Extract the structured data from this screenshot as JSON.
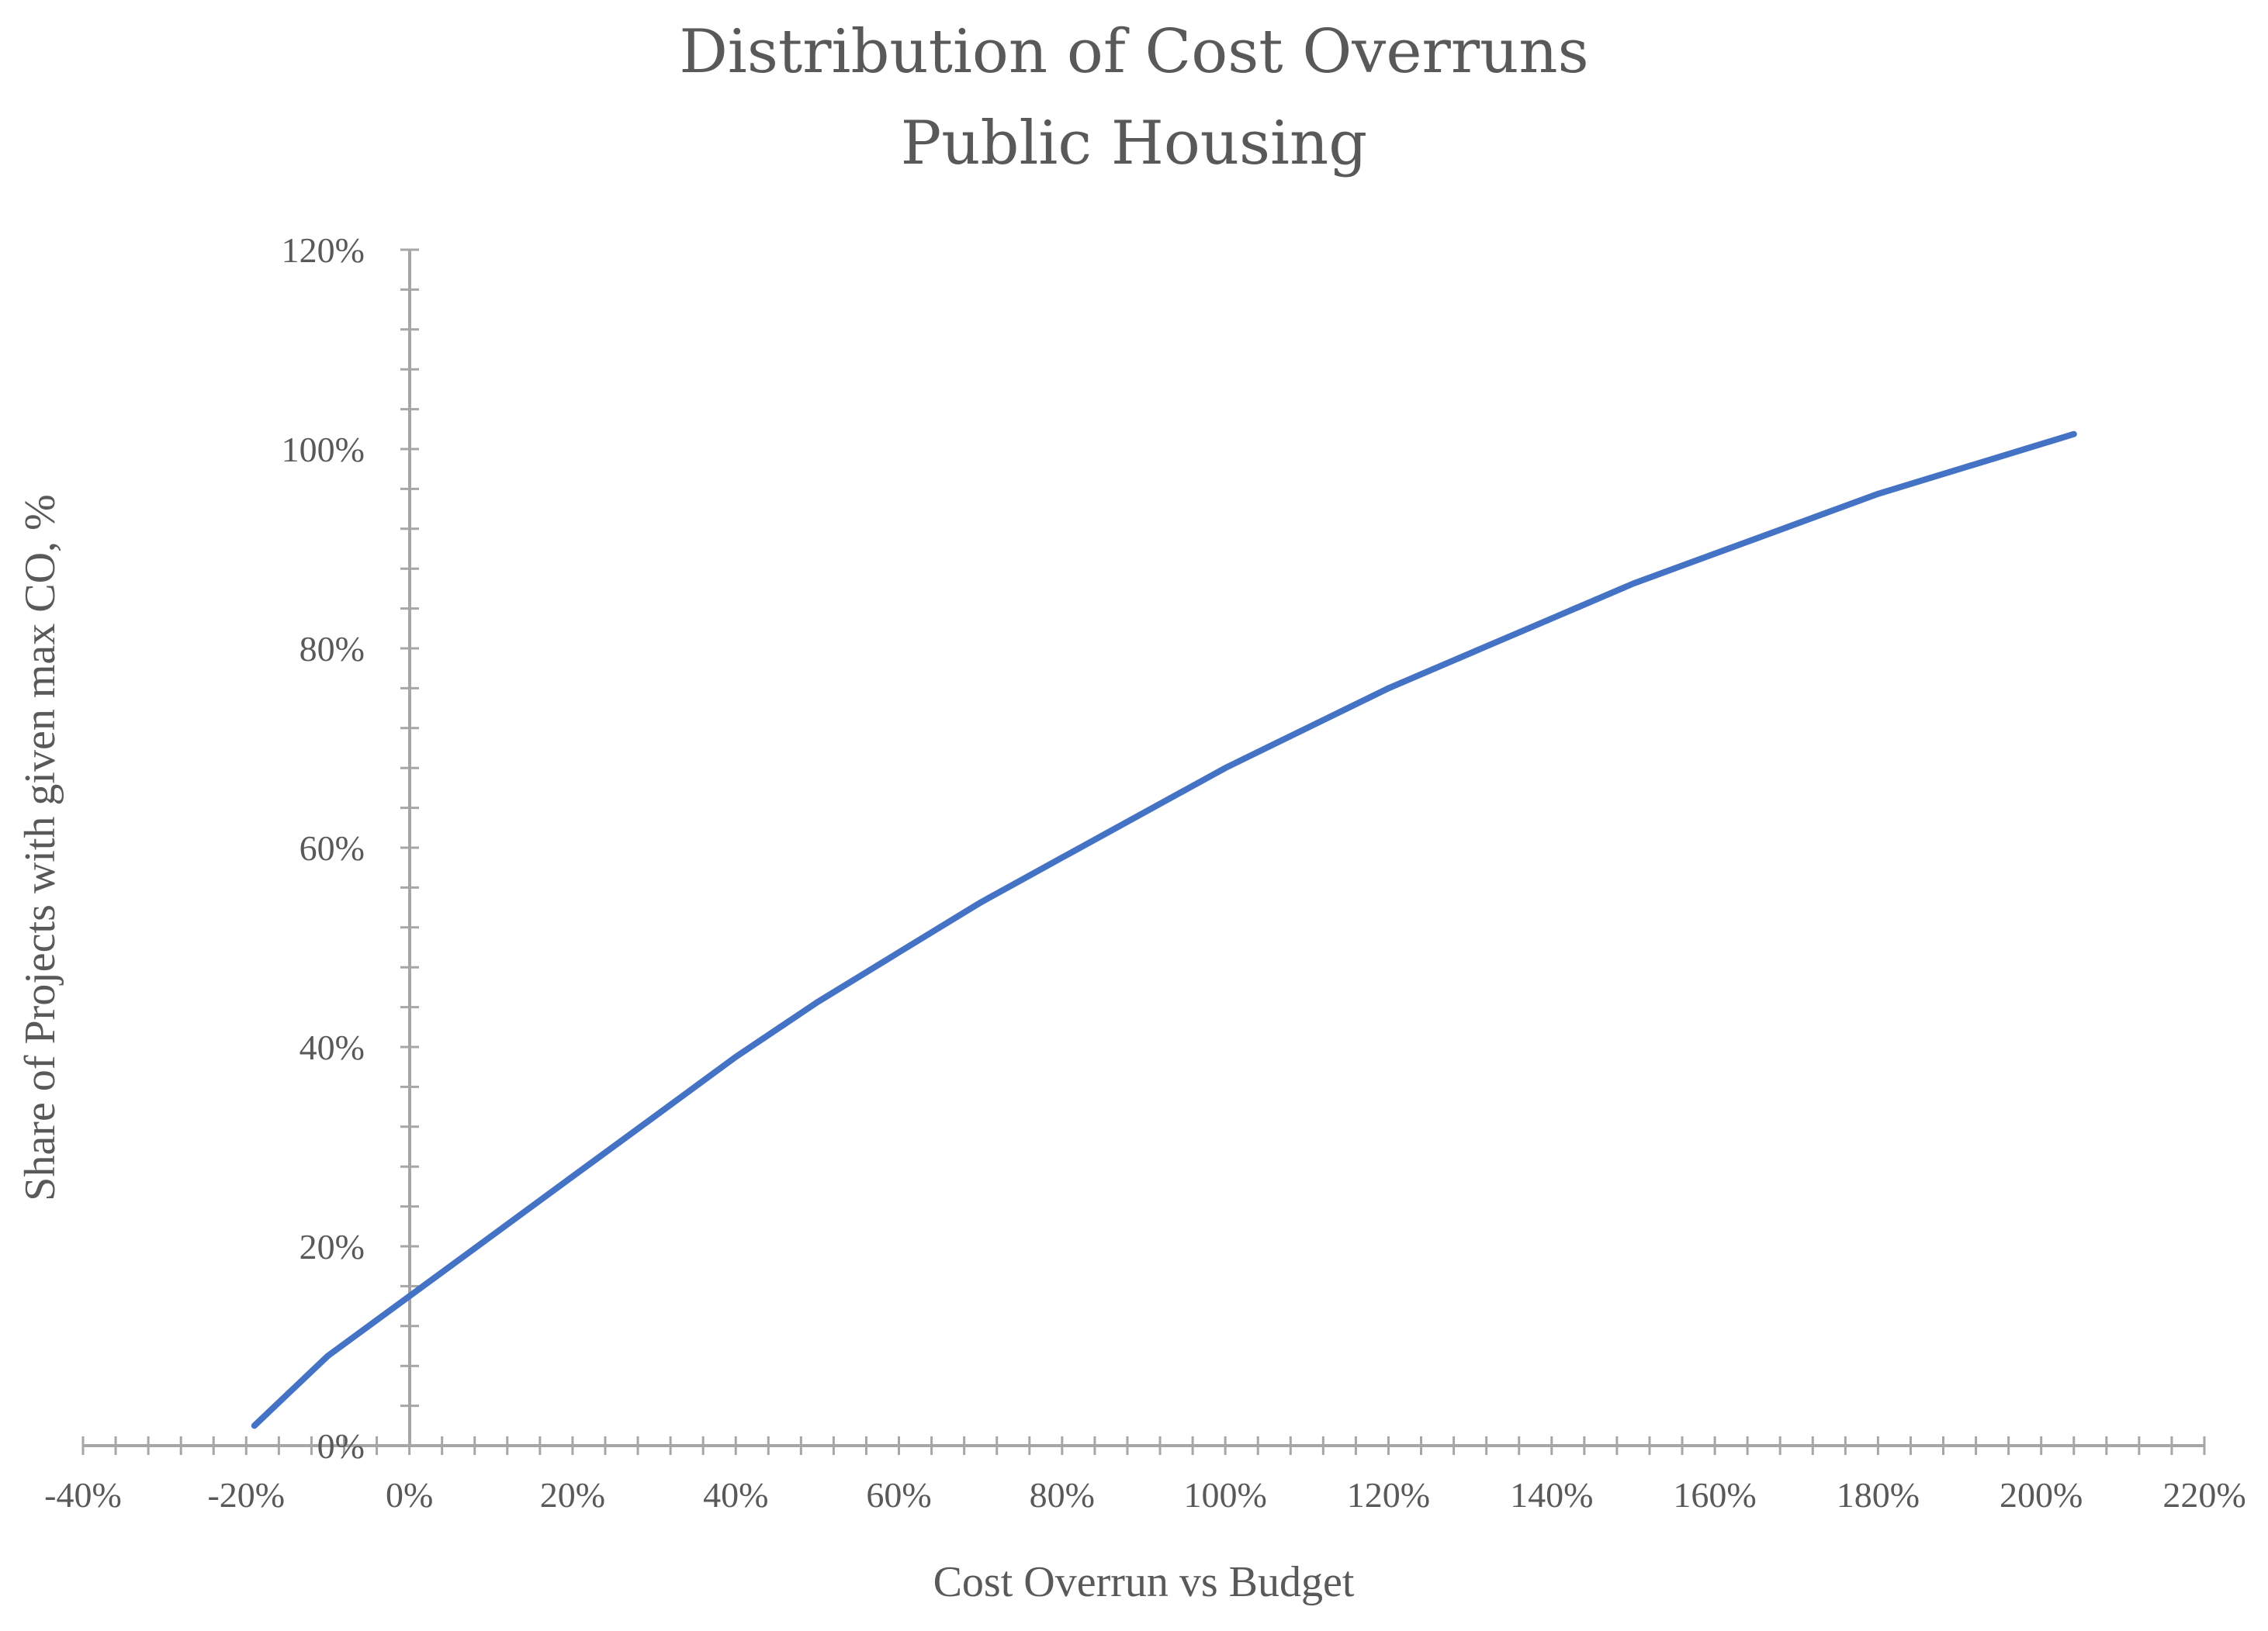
{
  "chart_data": {
    "type": "line",
    "title": [
      "Distribution of Cost Overruns",
      "Public Housing"
    ],
    "xlabel": "Cost Overrun vs Budget",
    "ylabel": "Share of Projects with given max CO, %",
    "xlim": [
      -40,
      220
    ],
    "ylim": [
      0,
      120
    ],
    "x_ticks": [
      -40,
      -20,
      0,
      20,
      40,
      60,
      80,
      100,
      120,
      140,
      160,
      180,
      200,
      220
    ],
    "x_tick_labels": [
      "-40%",
      "-20%",
      "0%",
      "20%",
      "40%",
      "60%",
      "80%",
      "100%",
      "120%",
      "140%",
      "160%",
      "180%",
      "200%",
      "220%"
    ],
    "y_ticks": [
      0,
      20,
      40,
      60,
      80,
      100,
      120
    ],
    "y_tick_labels": [
      "0%",
      "20%",
      "40%",
      "60%",
      "80%",
      "100%",
      "120%"
    ],
    "grid": false,
    "legend": "none",
    "series": [
      {
        "name": "Public Housing",
        "color": "#4472C4",
        "x": [
          -19,
          -10,
          0,
          10,
          20,
          30,
          40,
          50,
          60,
          70,
          80,
          90,
          100,
          110,
          120,
          130,
          140,
          150,
          160,
          170,
          180,
          190,
          204
        ],
        "values": [
          2,
          9,
          15,
          21,
          27,
          33,
          39,
          44.5,
          49.5,
          54.5,
          59,
          63.5,
          68,
          72,
          76,
          79.5,
          83,
          86.5,
          89.5,
          92.5,
          95.5,
          98,
          101.5
        ]
      }
    ]
  }
}
